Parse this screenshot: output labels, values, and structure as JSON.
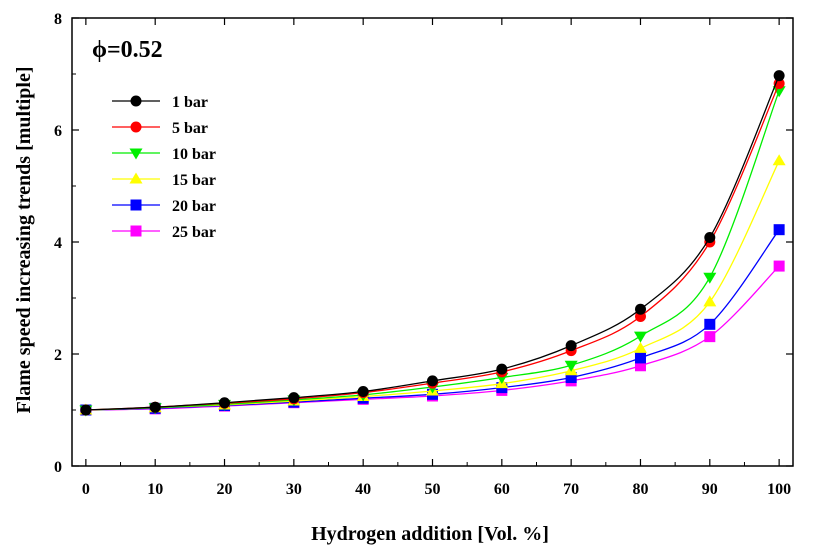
{
  "chart_data": {
    "type": "line",
    "annotation": "ϕ=0.52",
    "xlabel": "Hydrogen addition [Vol. %]",
    "ylabel": "Flame speed increasing trends [multiple]",
    "xlim": [
      -2,
      102
    ],
    "ylim": [
      0,
      8
    ],
    "x_ticks": [
      0,
      10,
      20,
      30,
      40,
      50,
      60,
      70,
      80,
      90,
      100
    ],
    "x_tick_labels": [
      "0",
      "10",
      "20",
      "30",
      "40",
      "50",
      "60",
      "70",
      "80",
      "90",
      "100"
    ],
    "y_ticks": [
      0,
      2,
      4,
      6,
      8
    ],
    "y_tick_labels": [
      "0",
      "2",
      "4",
      "6",
      "8"
    ],
    "grid": false,
    "legend_position": "top-left",
    "x": [
      0,
      10,
      20,
      30,
      40,
      50,
      60,
      70,
      80,
      90,
      100
    ],
    "series": [
      {
        "name": "1 bar",
        "color": "#000000",
        "marker": "circle",
        "values": [
          1.0,
          1.05,
          1.13,
          1.22,
          1.33,
          1.52,
          1.73,
          2.15,
          2.8,
          4.08,
          6.97
        ]
      },
      {
        "name": "5 bar",
        "color": "#ff0000",
        "marker": "circle",
        "values": [
          1.0,
          1.05,
          1.12,
          1.2,
          1.31,
          1.48,
          1.68,
          2.06,
          2.67,
          4.0,
          6.83
        ]
      },
      {
        "name": "10 bar",
        "color": "#00ee00",
        "marker": "triangle-down",
        "values": [
          1.0,
          1.04,
          1.1,
          1.18,
          1.27,
          1.41,
          1.58,
          1.8,
          2.32,
          3.37,
          6.7
        ]
      },
      {
        "name": "15 bar",
        "color": "#ffff00",
        "marker": "triangle-up",
        "values": [
          1.0,
          1.04,
          1.09,
          1.16,
          1.24,
          1.34,
          1.47,
          1.7,
          2.1,
          2.93,
          5.45
        ]
      },
      {
        "name": "20 bar",
        "color": "#0000ff",
        "marker": "square",
        "values": [
          1.0,
          1.03,
          1.08,
          1.14,
          1.21,
          1.28,
          1.4,
          1.58,
          1.93,
          2.53,
          4.22
        ]
      },
      {
        "name": "25 bar",
        "color": "#ff00ff",
        "marker": "square",
        "values": [
          1.0,
          1.02,
          1.07,
          1.13,
          1.19,
          1.25,
          1.35,
          1.52,
          1.79,
          2.31,
          3.57
        ]
      }
    ]
  }
}
